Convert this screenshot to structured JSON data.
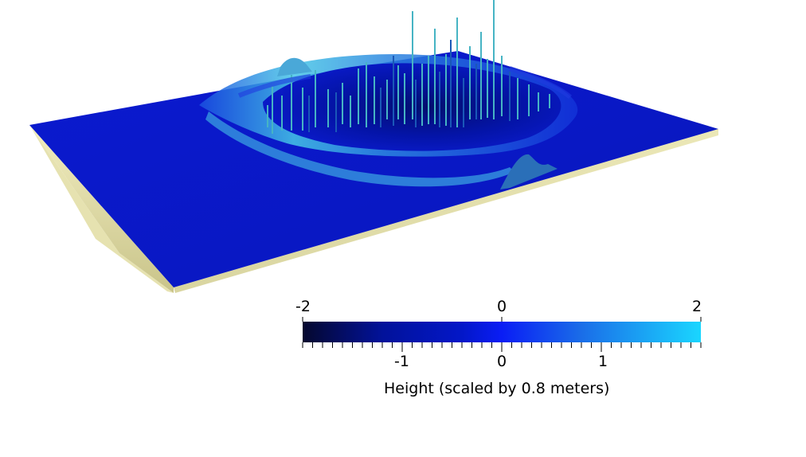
{
  "colorbar": {
    "title": "Height (scaled by 0.8 meters)",
    "range": [
      -2,
      2
    ],
    "top_tick_labels": [
      "-2",
      "0",
      "2"
    ],
    "bottom_tick_labels": [
      "-1",
      "0",
      "1"
    ],
    "gradient_stops": [
      "#05082e",
      "#02129a",
      "#0317c8",
      "#0a1df5",
      "#1a6de8",
      "#1ad6ff"
    ]
  },
  "scene": {
    "surface_color": "#0a17c8",
    "highlight_color": "#3fb4d8",
    "base_color": "#d8d49a"
  }
}
